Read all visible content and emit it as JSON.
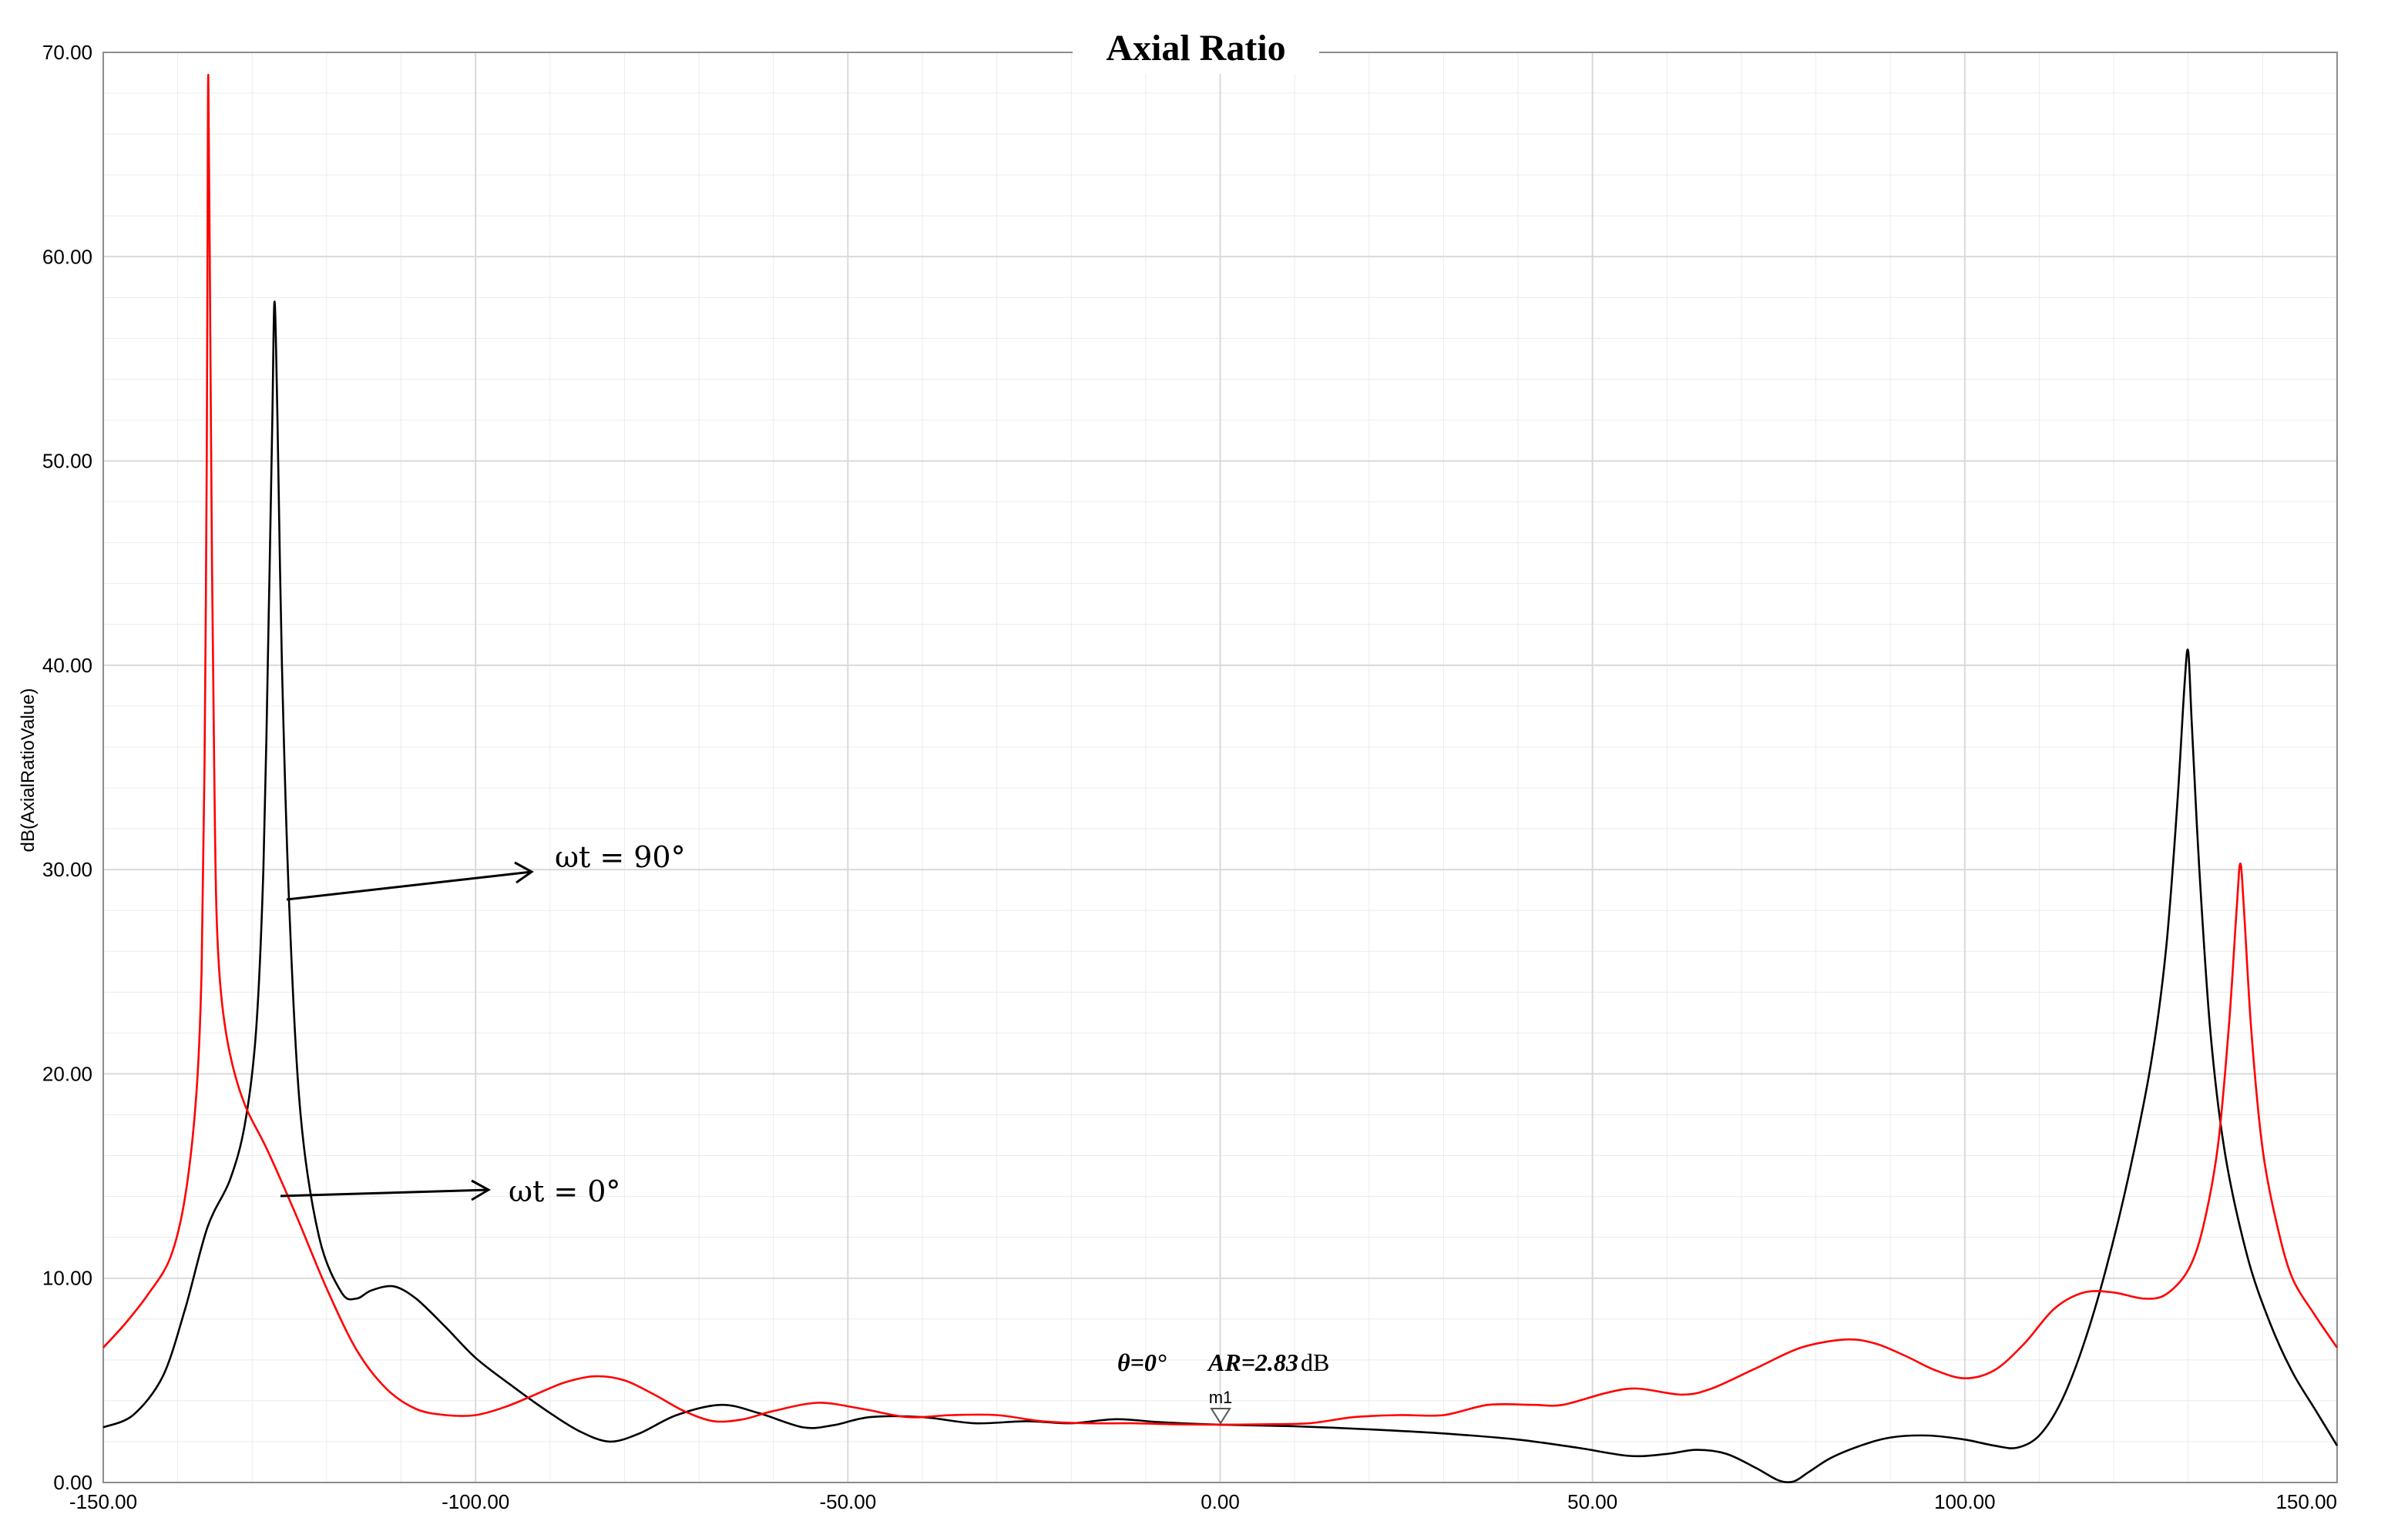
{
  "chart_data": {
    "type": "line",
    "title": "Axial Ratio",
    "xlabel": "",
    "ylabel": "dB(AxialRatioValue)",
    "xlim": [
      -150,
      150
    ],
    "ylim": [
      0,
      70
    ],
    "x_ticks": [
      "-150.00",
      "-100.00",
      "-50.00",
      "0.00",
      "50.00",
      "100.00",
      "150.00"
    ],
    "y_ticks": [
      "0.00",
      "10.00",
      "20.00",
      "30.00",
      "40.00",
      "50.00",
      "60.00",
      "70.00"
    ],
    "grid": true,
    "colors": {
      "black": "#000000",
      "red": "#ff0000",
      "grid": "#d9d9d9"
    },
    "series": [
      {
        "label": "ωt = 90°",
        "color": "#000000",
        "points": [
          [
            -150,
            2.7
          ],
          [
            -146,
            3.3
          ],
          [
            -142,
            5.2
          ],
          [
            -139,
            8.5
          ],
          [
            -136,
            12.5
          ],
          [
            -133,
            14.8
          ],
          [
            -131,
            17.5
          ],
          [
            -129.5,
            22
          ],
          [
            -128.5,
            30
          ],
          [
            -127.8,
            42
          ],
          [
            -127.3,
            52
          ],
          [
            -127,
            57.8
          ],
          [
            -126.6,
            52
          ],
          [
            -126,
            40
          ],
          [
            -125,
            28
          ],
          [
            -123.5,
            18
          ],
          [
            -121,
            12
          ],
          [
            -118,
            9.3
          ],
          [
            -116,
            9.0
          ],
          [
            -114,
            9.4
          ],
          [
            -111,
            9.6
          ],
          [
            -108,
            9.0
          ],
          [
            -104,
            7.6
          ],
          [
            -100,
            6.1
          ],
          [
            -95,
            4.7
          ],
          [
            -90,
            3.4
          ],
          [
            -86,
            2.5
          ],
          [
            -82,
            2.0
          ],
          [
            -78,
            2.4
          ],
          [
            -73,
            3.3
          ],
          [
            -67,
            3.8
          ],
          [
            -62,
            3.4
          ],
          [
            -56,
            2.7
          ],
          [
            -52,
            2.8
          ],
          [
            -47,
            3.2
          ],
          [
            -40,
            3.2
          ],
          [
            -33,
            2.9
          ],
          [
            -26,
            3.0
          ],
          [
            -20,
            2.9
          ],
          [
            -14,
            3.1
          ],
          [
            -8,
            2.95
          ],
          [
            0,
            2.83
          ],
          [
            10,
            2.75
          ],
          [
            20,
            2.6
          ],
          [
            30,
            2.4
          ],
          [
            40,
            2.1
          ],
          [
            48,
            1.7
          ],
          [
            55,
            1.3
          ],
          [
            60,
            1.4
          ],
          [
            64,
            1.6
          ],
          [
            68,
            1.4
          ],
          [
            72,
            0.7
          ],
          [
            75,
            0.1
          ],
          [
            77,
            0.05
          ],
          [
            79,
            0.5
          ],
          [
            82,
            1.2
          ],
          [
            86,
            1.8
          ],
          [
            90,
            2.2
          ],
          [
            95,
            2.3
          ],
          [
            100,
            2.1
          ],
          [
            104,
            1.8
          ],
          [
            107,
            1.7
          ],
          [
            110,
            2.3
          ],
          [
            113,
            4.0
          ],
          [
            116,
            6.8
          ],
          [
            119,
            10.5
          ],
          [
            122,
            15.0
          ],
          [
            125,
            20.5
          ],
          [
            127,
            26
          ],
          [
            128.5,
            33
          ],
          [
            129.5,
            39
          ],
          [
            130,
            40.7
          ],
          [
            130.5,
            37
          ],
          [
            131.5,
            30
          ],
          [
            133,
            22
          ],
          [
            135,
            16
          ],
          [
            138,
            11
          ],
          [
            141,
            7.8
          ],
          [
            144,
            5.4
          ],
          [
            147,
            3.6
          ],
          [
            150,
            1.8
          ]
        ]
      },
      {
        "label": "ωt = 0°",
        "color": "#ff0000",
        "points": [
          [
            -150,
            6.6
          ],
          [
            -147,
            7.8
          ],
          [
            -144,
            9.2
          ],
          [
            -141,
            11.0
          ],
          [
            -139,
            14.0
          ],
          [
            -137.5,
            19.0
          ],
          [
            -136.8,
            25
          ],
          [
            -136.4,
            35
          ],
          [
            -136.1,
            50
          ],
          [
            -136,
            60
          ],
          [
            -135.9,
            68.9
          ],
          [
            -135.7,
            60
          ],
          [
            -135.4,
            45
          ],
          [
            -135.1,
            35
          ],
          [
            -134.8,
            28
          ],
          [
            -134.2,
            24
          ],
          [
            -133,
            21
          ],
          [
            -131,
            18.5
          ],
          [
            -128,
            16.3
          ],
          [
            -124,
            13.0
          ],
          [
            -120,
            9.5
          ],
          [
            -116,
            6.5
          ],
          [
            -112,
            4.6
          ],
          [
            -108,
            3.6
          ],
          [
            -104,
            3.3
          ],
          [
            -100,
            3.3
          ],
          [
            -96,
            3.7
          ],
          [
            -92,
            4.3
          ],
          [
            -88,
            4.9
          ],
          [
            -84,
            5.2
          ],
          [
            -80,
            5.0
          ],
          [
            -76,
            4.3
          ],
          [
            -72,
            3.5
          ],
          [
            -68,
            3.0
          ],
          [
            -64,
            3.1
          ],
          [
            -60,
            3.5
          ],
          [
            -54,
            3.9
          ],
          [
            -48,
            3.6
          ],
          [
            -42,
            3.2
          ],
          [
            -36,
            3.3
          ],
          [
            -30,
            3.3
          ],
          [
            -24,
            3.0
          ],
          [
            -18,
            2.9
          ],
          [
            -12,
            2.9
          ],
          [
            -6,
            2.85
          ],
          [
            0,
            2.83
          ],
          [
            6,
            2.85
          ],
          [
            12,
            2.9
          ],
          [
            18,
            3.2
          ],
          [
            24,
            3.3
          ],
          [
            30,
            3.3
          ],
          [
            36,
            3.8
          ],
          [
            42,
            3.8
          ],
          [
            46,
            3.8
          ],
          [
            52,
            4.4
          ],
          [
            56,
            4.6
          ],
          [
            62,
            4.3
          ],
          [
            66,
            4.6
          ],
          [
            72,
            5.6
          ],
          [
            78,
            6.6
          ],
          [
            84,
            7.0
          ],
          [
            88,
            6.8
          ],
          [
            92,
            6.2
          ],
          [
            96,
            5.5
          ],
          [
            100,
            5.1
          ],
          [
            104,
            5.5
          ],
          [
            108,
            6.8
          ],
          [
            112,
            8.5
          ],
          [
            116,
            9.3
          ],
          [
            120,
            9.3
          ],
          [
            124,
            9.0
          ],
          [
            127,
            9.2
          ],
          [
            130,
            10.4
          ],
          [
            132,
            12.5
          ],
          [
            134,
            16.5
          ],
          [
            135.5,
            22.5
          ],
          [
            136.5,
            28
          ],
          [
            137,
            30.3
          ],
          [
            137.5,
            28
          ],
          [
            138.5,
            22
          ],
          [
            140,
            16.3
          ],
          [
            142,
            12.5
          ],
          [
            144,
            10.0
          ],
          [
            147,
            8.2
          ],
          [
            150,
            6.6
          ]
        ]
      }
    ],
    "annotations": [
      {
        "text": "ωt = 90°",
        "series": 0
      },
      {
        "text": "ωt = 0°",
        "series": 1
      }
    ],
    "marker": {
      "name": "m1",
      "x": 0,
      "y": 2.83,
      "label_theta": "θ=0°",
      "label_ar": "AR=2.83",
      "label_unit": "dB"
    }
  }
}
